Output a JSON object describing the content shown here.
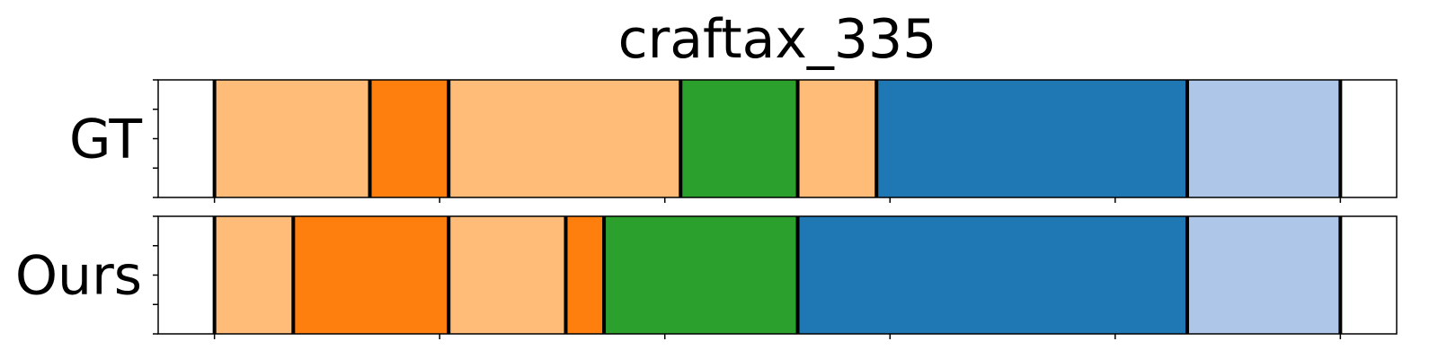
{
  "chart_data": {
    "type": "segmentation-timeline",
    "title": "craftax_335",
    "x_range": [
      -25,
      525
    ],
    "boundary_color": "#000000",
    "rows": [
      {
        "label": "GT",
        "segments": [
          {
            "start": 0,
            "end": 69,
            "color": "#ffbb78"
          },
          {
            "start": 69,
            "end": 104,
            "color": "#ff7f0e"
          },
          {
            "start": 104,
            "end": 207,
            "color": "#ffbb78"
          },
          {
            "start": 207,
            "end": 259,
            "color": "#2ca02c"
          },
          {
            "start": 259,
            "end": 294,
            "color": "#ffbb78"
          },
          {
            "start": 294,
            "end": 432,
            "color": "#1f77b4"
          },
          {
            "start": 432,
            "end": 500,
            "color": "#aec7e8"
          }
        ]
      },
      {
        "label": "Ours",
        "segments": [
          {
            "start": 0,
            "end": 35,
            "color": "#ffbb78"
          },
          {
            "start": 35,
            "end": 104,
            "color": "#ff7f0e"
          },
          {
            "start": 104,
            "end": 156,
            "color": "#ffbb78"
          },
          {
            "start": 156,
            "end": 173,
            "color": "#ff7f0e"
          },
          {
            "start": 173,
            "end": 259,
            "color": "#2ca02c"
          },
          {
            "start": 259,
            "end": 432,
            "color": "#1f77b4"
          },
          {
            "start": 432,
            "end": 500,
            "color": "#aec7e8"
          }
        ]
      }
    ],
    "x_ticks": [
      0,
      100,
      200,
      300,
      400,
      500
    ],
    "y_tick_count": 5,
    "tick_labels_shown": false
  }
}
